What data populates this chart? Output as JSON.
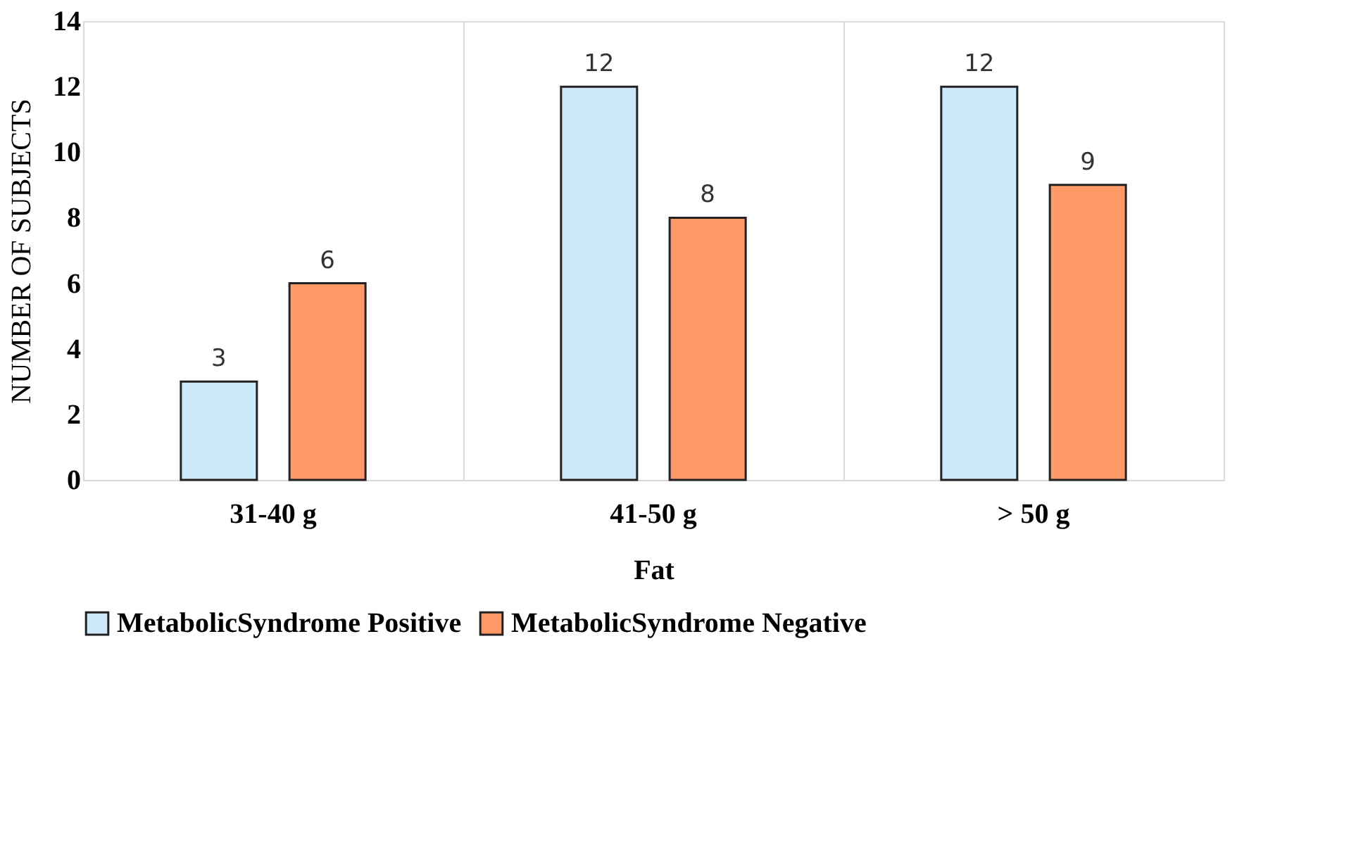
{
  "chart_data": {
    "type": "bar",
    "xlabel": "Fat",
    "ylabel": "NUMBER OF SUBJECTS",
    "categories": [
      "31-40 g",
      "41-50 g",
      "> 50 g"
    ],
    "series": [
      {
        "name": "MetabolicSyndrome Positive",
        "color": "#cce9fb",
        "values": [
          3,
          12,
          12
        ]
      },
      {
        "name": "MetabolicSyndrome Negative",
        "color": "#ff9966",
        "values": [
          6,
          8,
          9
        ]
      }
    ],
    "ylim": [
      0,
      14
    ],
    "yticks": [
      0,
      2,
      4,
      6,
      8,
      10,
      12,
      14
    ],
    "grid": "x",
    "legend": "bottom",
    "data_labels": true
  }
}
